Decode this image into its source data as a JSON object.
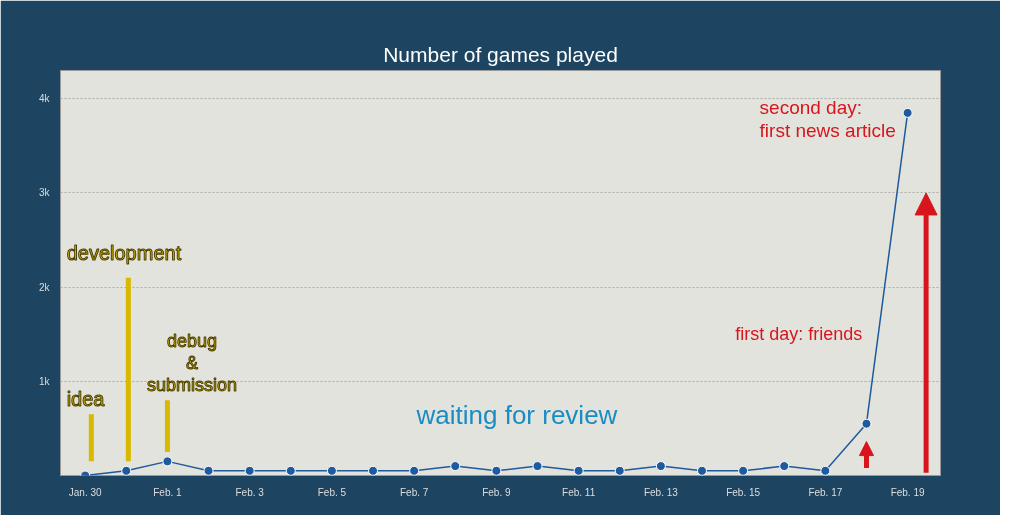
{
  "chart_data": {
    "type": "line",
    "title": "Number of games played",
    "categories": [
      "Jan. 30",
      null,
      "Feb. 1",
      null,
      "Feb. 3",
      null,
      "Feb. 5",
      null,
      "Feb. 7",
      null,
      "Feb. 9",
      null,
      "Feb. 11",
      null,
      "Feb. 13",
      null,
      "Feb. 15",
      null,
      "Feb. 17",
      null,
      "Feb. 19"
    ],
    "series": [
      {
        "color": "#1f5a9e",
        "values": [
          0,
          50,
          150,
          50,
          50,
          50,
          50,
          50,
          50,
          100,
          50,
          100,
          50,
          50,
          100,
          50,
          50,
          100,
          50,
          550,
          3850
        ]
      }
    ],
    "ylim": [
      0,
      4300
    ],
    "yticks": [
      {
        "value": 1000,
        "label": "1k"
      },
      {
        "value": 2000,
        "label": "2k"
      },
      {
        "value": 3000,
        "label": "3k"
      },
      {
        "value": 4000,
        "label": "4k"
      }
    ],
    "grid": "y",
    "marker": "circle",
    "line_style": "solid",
    "annotations": [
      "idea",
      "development",
      "debug\n&\nsubmission",
      "waiting for review",
      "first day: friends",
      "second day:\nfirst news article"
    ]
  }
}
